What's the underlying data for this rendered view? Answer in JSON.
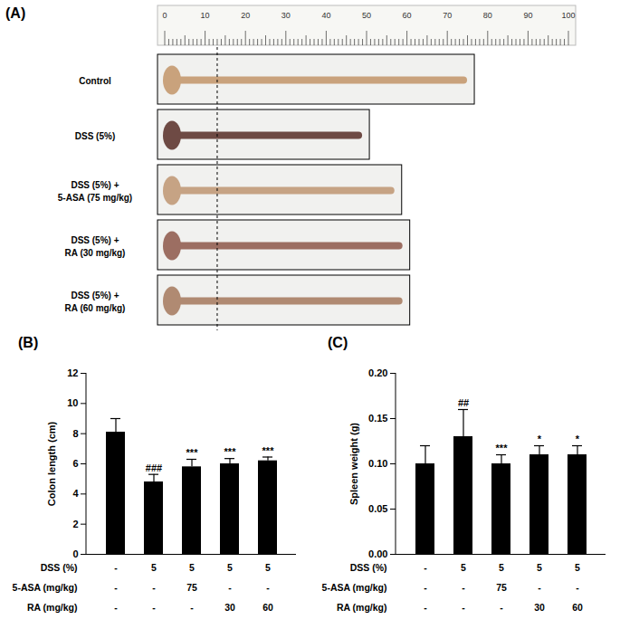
{
  "chart_data": [
    {
      "type": "diagram",
      "panel_label": "(A)",
      "ruler": {
        "lim": [
          0,
          100
        ],
        "ticks": [
          0,
          10,
          20,
          30,
          40,
          50,
          60,
          70,
          80,
          90,
          100
        ]
      },
      "reference_line": 13,
      "specimens": [
        {
          "name": [
            "Control"
          ],
          "colon_length": 74,
          "color": "#c9a27c"
        },
        {
          "name": [
            "DSS (5%)"
          ],
          "colon_length": 48,
          "color": "#6e4a44"
        },
        {
          "name": [
            "DSS (5%) +",
            "5-ASA (75 mg/kg)"
          ],
          "colon_length": 56,
          "color": "#c6a384"
        },
        {
          "name": [
            "DSS (5%) +",
            "RA (30 mg/kg)"
          ],
          "colon_length": 58,
          "color": "#9c6e62"
        },
        {
          "name": [
            "DSS (5%) +",
            "RA (60 mg/kg)"
          ],
          "colon_length": 58,
          "color": "#b08a72"
        }
      ]
    },
    {
      "type": "bar",
      "panel_label": "(B)",
      "ylabel": "Colon length (cm)",
      "categories": [
        null,
        null,
        null,
        null,
        null
      ],
      "values": [
        8.1,
        4.8,
        5.8,
        6.0,
        6.2
      ],
      "error": [
        0.9,
        0.5,
        0.5,
        0.35,
        0.25
      ],
      "significance": [
        null,
        "###",
        "***",
        "***",
        "***"
      ],
      "color": "#000000",
      "ylim": [
        0,
        12
      ],
      "yticks": [
        0,
        2,
        4,
        6,
        8,
        10,
        12
      ],
      "conditions": [
        {
          "name": "DSS (%)",
          "values": [
            "-",
            "5",
            "5",
            "5",
            "5"
          ]
        },
        {
          "name": "5-ASA (mg/kg)",
          "values": [
            "-",
            "-",
            "75",
            "-",
            "-"
          ]
        },
        {
          "name": "RA (mg/kg)",
          "values": [
            "-",
            "-",
            "-",
            "30",
            "60"
          ]
        }
      ]
    },
    {
      "type": "bar",
      "panel_label": "(C)",
      "ylabel": "Spleen weight (g)",
      "categories": [
        null,
        null,
        null,
        null,
        null
      ],
      "values": [
        0.1,
        0.13,
        0.1,
        0.11,
        0.11
      ],
      "error": [
        0.02,
        0.03,
        0.01,
        0.01,
        0.01
      ],
      "significance": [
        null,
        "##",
        "***",
        "*",
        "*"
      ],
      "color": "#000000",
      "ylim": [
        0,
        0.2
      ],
      "yticks": [
        {
          "value": 0,
          "label": "0.00"
        },
        {
          "value": 0.05,
          "label": "0.05"
        },
        {
          "value": 0.1,
          "label": "0.10"
        },
        {
          "value": 0.15,
          "label": "0.15"
        },
        {
          "value": 0.2,
          "label": "0.20"
        }
      ],
      "conditions": [
        {
          "name": "DSS (%)",
          "values": [
            "-",
            "5",
            "5",
            "5",
            "5"
          ]
        },
        {
          "name": "5-ASA (mg/kg)",
          "values": [
            "-",
            "-",
            "75",
            "-",
            "-"
          ]
        },
        {
          "name": "RA (mg/kg)",
          "values": [
            "-",
            "-",
            "-",
            "30",
            "60"
          ]
        }
      ]
    }
  ]
}
